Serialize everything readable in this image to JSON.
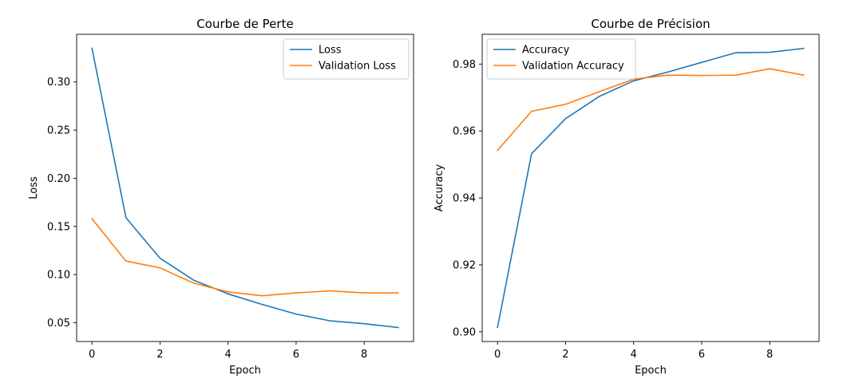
{
  "colors": {
    "series1": "#1f77b4",
    "series2": "#ff7f0e"
  },
  "chart_data": [
    {
      "type": "line",
      "title": "Courbe de Perte",
      "xlabel": "Epoch",
      "ylabel": "Loss",
      "x": [
        0,
        1,
        2,
        3,
        4,
        5,
        6,
        7,
        8,
        9
      ],
      "series": [
        {
          "name": "Loss",
          "values": [
            0.335,
            0.159,
            0.117,
            0.094,
            0.08,
            0.069,
            0.059,
            0.052,
            0.049,
            0.045
          ]
        },
        {
          "name": "Validation Loss",
          "values": [
            0.158,
            0.114,
            0.107,
            0.091,
            0.082,
            0.078,
            0.081,
            0.083,
            0.081,
            0.081
          ]
        }
      ],
      "xlim": [
        -0.45,
        9.45
      ],
      "ylim": [
        0.0305,
        0.3495
      ],
      "xticks": [
        0,
        2,
        4,
        6,
        8
      ],
      "xtick_labels": [
        "0",
        "2",
        "4",
        "6",
        "8"
      ],
      "yticks": [
        0.05,
        0.1,
        0.15,
        0.2,
        0.25,
        0.3
      ],
      "ytick_labels": [
        "0.05",
        "0.10",
        "0.15",
        "0.20",
        "0.25",
        "0.30"
      ],
      "legend": "top-right",
      "grid": false
    },
    {
      "type": "line",
      "title": "Courbe de Précision",
      "xlabel": "Epoch",
      "ylabel": "Accuracy",
      "x": [
        0,
        1,
        2,
        3,
        4,
        5,
        6,
        7,
        8,
        9
      ],
      "series": [
        {
          "name": "Accuracy",
          "values": [
            0.9013,
            0.9532,
            0.9637,
            0.9704,
            0.975,
            0.9776,
            0.9805,
            0.9834,
            0.9835,
            0.9847
          ]
        },
        {
          "name": "Validation Accuracy",
          "values": [
            0.9542,
            0.9659,
            0.968,
            0.9718,
            0.9755,
            0.9767,
            0.9766,
            0.9767,
            0.9786,
            0.9767
          ]
        }
      ],
      "xlim": [
        -0.45,
        9.45
      ],
      "ylim": [
        0.8971,
        0.9889
      ],
      "xticks": [
        0,
        2,
        4,
        6,
        8
      ],
      "xtick_labels": [
        "0",
        "2",
        "4",
        "6",
        "8"
      ],
      "yticks": [
        0.9,
        0.92,
        0.94,
        0.96,
        0.98
      ],
      "ytick_labels": [
        "0.90",
        "0.92",
        "0.94",
        "0.96",
        "0.98"
      ],
      "legend": "top-left",
      "grid": false
    }
  ]
}
